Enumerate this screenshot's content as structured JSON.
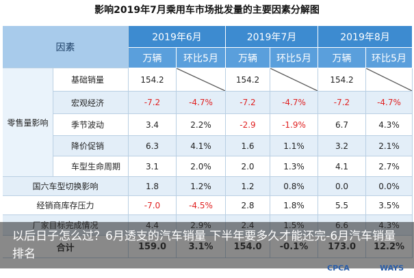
{
  "title": "影响2019年7月乘用车市场批发量的主要因素分解图",
  "table": {
    "header": {
      "factor": "因素",
      "months": [
        "2019年6月",
        "2019年7月",
        "2019年8月"
      ],
      "units": [
        "万辆",
        "环比5月"
      ]
    },
    "retail": {
      "label": "零售量影响",
      "rows": [
        {
          "label": "基础销量",
          "cells": [
            "154.2",
            null,
            "154.2",
            null,
            "154.2",
            null
          ]
        },
        {
          "label": "宏观经济",
          "cells": [
            "-7.2",
            "-4.7%",
            "-7.2",
            "-4.7%",
            "-7.2",
            "-4.7%"
          ]
        },
        {
          "label": "季节波动",
          "cells": [
            "3.4",
            "2.2%",
            "-2.9",
            "-1.9%",
            "6.7",
            "4.3%"
          ]
        },
        {
          "label": "降价促销",
          "cells": [
            "6.3",
            "4.1%",
            "1.6",
            "1.1%",
            "3.2",
            "2.1%"
          ]
        },
        {
          "label": "车型生命周期",
          "cells": [
            "3.1",
            "2.0%",
            "2.0",
            "1.3%",
            "4.1",
            "2.7%"
          ]
        }
      ]
    },
    "other_rows": [
      {
        "label": "国六车型切换影响",
        "cells": [
          "1.8",
          "1.2%",
          "1.2",
          "0.8%",
          "0.0",
          "0.0%"
        ]
      },
      {
        "label": "经销商库存压力",
        "cells": [
          "-7.0",
          "-4.5%",
          "2.8",
          "1.8%",
          "5.5",
          "3.5%"
        ]
      },
      {
        "label": "厂家目标完成情况",
        "cells": [
          "4.4",
          "2.9%",
          "2.4",
          "1.5%",
          "6.6",
          "4.3%"
        ]
      }
    ],
    "total": {
      "label": "合计",
      "cells": [
        "159.0",
        "3.1%",
        "154.0",
        "-0.1%",
        "173.0",
        "12.2%"
      ]
    }
  },
  "caption": "以后日子怎么过？6月透支的汽车销量 下半年要多久才能还完-6月汽车销量排名",
  "logos": [
    "CPCA",
    "WAYS"
  ]
}
